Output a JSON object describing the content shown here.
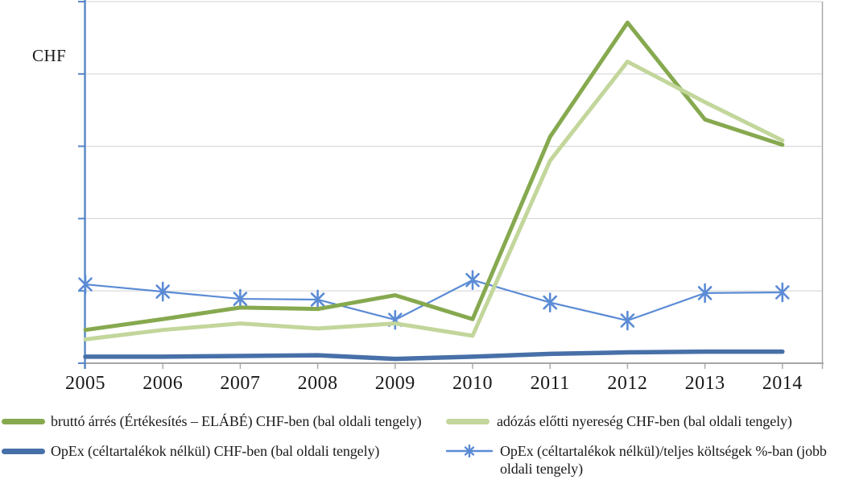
{
  "chart": {
    "y_axis_title": "CHF"
  },
  "chart_data": {
    "type": "line",
    "title": "",
    "categories": [
      "2005",
      "2006",
      "2007",
      "2008",
      "2009",
      "2010",
      "2011",
      "2012",
      "2013",
      "2014"
    ],
    "left_axis": {
      "title": "CHF",
      "numeric_labels_visible": false,
      "gridline_intervals": 5,
      "ylim": [
        0,
        5
      ]
    },
    "right_axis": {
      "numeric_labels_visible": false
    },
    "grid": "horizontal",
    "legend_position": "bottom",
    "value_note": "axes show tick marks but no numbers; series values are estimated in gridline units (1 = one horizontal gridline interval above the x-axis)",
    "series": [
      {
        "name": "bruttó árrés (Értékesítés – ELÁBÉ) CHF-ben (bal oldali tengely)",
        "axis": "left",
        "color": "#86A94F",
        "line_width": 5,
        "marker": "none",
        "values": [
          0.46,
          0.61,
          0.77,
          0.75,
          0.94,
          0.61,
          3.13,
          4.71,
          3.37,
          3.02
        ]
      },
      {
        "name": "adózás előtti nyereség CHF-ben (bal oldali tengely)",
        "axis": "left",
        "color": "#C3D69B",
        "line_width": 5,
        "marker": "none",
        "values": [
          0.33,
          0.46,
          0.55,
          0.48,
          0.55,
          0.38,
          2.8,
          4.17,
          3.61,
          3.08
        ]
      },
      {
        "name": "OpEx (céltartalékok nélkül) CHF-ben (bal oldali tengely)",
        "axis": "left",
        "color": "#4870A8",
        "line_width": 5.5,
        "marker": "none",
        "values": [
          0.09,
          0.09,
          0.1,
          0.11,
          0.06,
          0.09,
          0.13,
          0.15,
          0.16,
          0.16
        ]
      },
      {
        "name": "OpEx (céltartalékok nélkül)/teljes költségek %-ban (jobb oldali tengely)",
        "axis": "right",
        "color": "#5B8BD5",
        "line_width": 2.2,
        "marker": "asterisk",
        "values": [
          1.09,
          0.99,
          0.89,
          0.88,
          0.6,
          1.15,
          0.84,
          0.59,
          0.97,
          0.98
        ]
      }
    ]
  },
  "legend": {
    "items": [
      {
        "label": "bruttó árrés (Értékesítés – ELÁBÉ) CHF-ben (bal oldali tengely)",
        "color": "#86A94F",
        "marker": "line"
      },
      {
        "label": "adózás előtti nyereség CHF-ben (bal oldali tengely)",
        "color": "#C3D69B",
        "marker": "line"
      },
      {
        "label": "OpEx (céltartalékok nélkül) CHF-ben (bal oldali tengely)",
        "color": "#4870A8",
        "marker": "line"
      },
      {
        "label": "OpEx (céltartalékok nélkül)/teljes költségek %-ban (jobb oldali tengely)",
        "color": "#5B8BD5",
        "marker": "line-asterisk"
      }
    ]
  },
  "colors": {
    "gridline": "#D9D9D9",
    "axis_gray": "#A6A6A6",
    "axis_blue": "#5585C5",
    "text": "#1A1A1A",
    "background": "#FFFFFF"
  }
}
